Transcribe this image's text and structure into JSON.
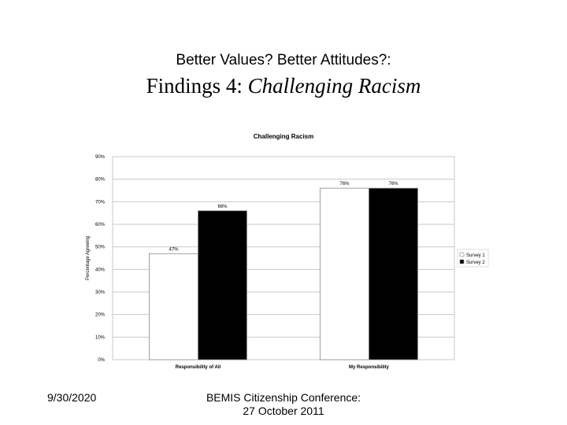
{
  "slide": {
    "kicker": "Better Values? Better Attitudes?:",
    "title_prefix": "Findings 4: ",
    "title_emphasis": "Challenging Racism",
    "date": "9/30/2020",
    "conference_line1": "BEMIS Citizenship Conference:",
    "conference_line2": "27 October 2011"
  },
  "chart_data": {
    "type": "bar",
    "title": "Challenging Racism",
    "ylabel": "Percentage Agreeing",
    "xlabel": "",
    "categories": [
      "Responsibility of All",
      "My Responsibility"
    ],
    "series": [
      {
        "name": "Survey 1",
        "values": [
          47,
          76
        ],
        "labels": [
          "47%",
          "76%"
        ],
        "color": "#ffffff"
      },
      {
        "name": "Survey 2",
        "values": [
          66,
          76
        ],
        "labels": [
          "66%",
          "76%"
        ],
        "color": "#000000"
      }
    ],
    "ylim": [
      0,
      90
    ],
    "yticks": [
      0,
      10,
      20,
      30,
      40,
      50,
      60,
      70,
      80,
      90
    ],
    "ytick_labels": [
      "0%",
      "10%",
      "20%",
      "30%",
      "40%",
      "50%",
      "60%",
      "70%",
      "80%",
      "90%"
    ],
    "grid": true,
    "legend": "right"
  }
}
